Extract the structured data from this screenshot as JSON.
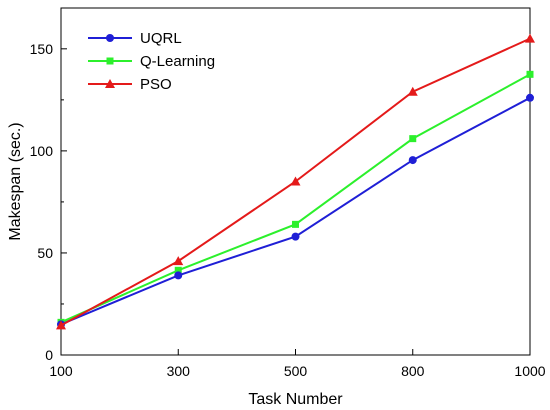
{
  "chart_data": {
    "type": "line",
    "title": "",
    "xlabel": "Task Number",
    "ylabel": "Makespan (sec.)",
    "x": [
      100,
      300,
      500,
      800,
      1000
    ],
    "xlim": [
      100,
      1000
    ],
    "ylim": [
      0,
      170
    ],
    "xticks": [
      "100",
      "300",
      "500",
      "800",
      "1000"
    ],
    "yticks": [
      "0",
      "50",
      "100",
      "150"
    ],
    "grid": false,
    "legend_position": "top-left",
    "series": [
      {
        "name": "UQRL",
        "color": "#1f1fd6",
        "marker": "circle",
        "values": [
          15,
          39,
          58,
          95.5,
          126
        ]
      },
      {
        "name": "Q-Learning",
        "color": "#2cf02c",
        "marker": "square",
        "values": [
          16,
          41.5,
          64,
          106,
          137.5
        ]
      },
      {
        "name": "PSO",
        "color": "#e41a1a",
        "marker": "triangle",
        "values": [
          14.5,
          46,
          85,
          129,
          155
        ]
      }
    ]
  }
}
